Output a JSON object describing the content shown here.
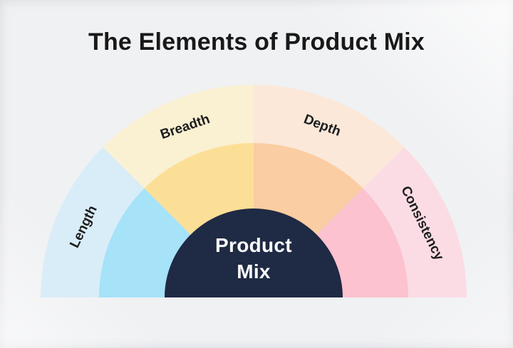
{
  "title": "The Elements of Product Mix",
  "colors": {
    "background": "#f0f1f3",
    "title_text": "#191919",
    "segment_label_text": "#1d1d1f",
    "center_fill": "#1f2a44",
    "center_text": "#fafafa"
  },
  "chart": {
    "type": "semicircle-gauge-diagram",
    "segments": [
      {
        "label": "Length",
        "outer_color": "#d9edf8",
        "inner_color": "#a6e2f8"
      },
      {
        "label": "Breadth",
        "outer_color": "#faf0d2",
        "inner_color": "#fcdf96"
      },
      {
        "label": "Depth",
        "outer_color": "#fbe8d9",
        "inner_color": "#facda2"
      },
      {
        "label": "Consistency",
        "outer_color": "#fbdce4",
        "inner_color": "#fcc2cf"
      }
    ],
    "center": {
      "lines": [
        "Product",
        "Mix"
      ]
    }
  }
}
